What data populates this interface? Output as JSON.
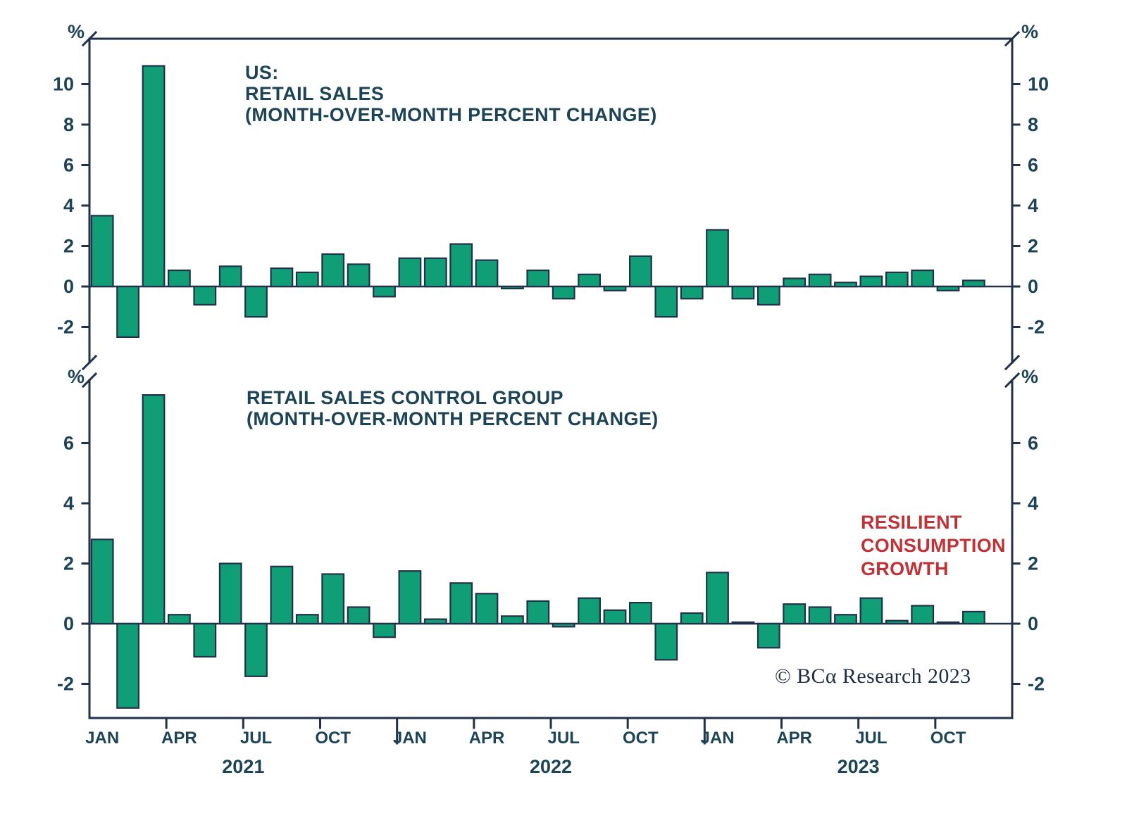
{
  "colors": {
    "bar_fill": "#0f9e75",
    "axis": "#22314a",
    "text": "#1c4356",
    "annotation_red": "#c13237",
    "background": "#ffffff"
  },
  "chart_data": [
    {
      "type": "bar",
      "title_lines": [
        "US:",
        "RETAIL SALES",
        "(MONTH-OVER-MONTH PERCENT CHANGE)"
      ],
      "unit_label": "%",
      "yticks": [
        -2,
        0,
        2,
        4,
        6,
        8,
        10
      ],
      "ylim": [
        -4.0,
        12.3
      ],
      "grid": false,
      "x": [
        "2021-01",
        "2021-02",
        "2021-03",
        "2021-04",
        "2021-05",
        "2021-06",
        "2021-07",
        "2021-08",
        "2021-09",
        "2021-10",
        "2021-11",
        "2021-12",
        "2022-01",
        "2022-02",
        "2022-03",
        "2022-04",
        "2022-05",
        "2022-06",
        "2022-07",
        "2022-08",
        "2022-09",
        "2022-10",
        "2022-11",
        "2022-12",
        "2023-01",
        "2023-02",
        "2023-03",
        "2023-04",
        "2023-05",
        "2023-06",
        "2023-07",
        "2023-08",
        "2023-09",
        "2023-10",
        "2023-11"
      ],
      "values": [
        3.5,
        -2.5,
        10.9,
        0.8,
        -0.9,
        1.0,
        -1.5,
        0.9,
        0.7,
        1.6,
        1.1,
        -0.5,
        1.4,
        1.4,
        2.1,
        1.3,
        -0.1,
        0.8,
        -0.6,
        0.6,
        -0.2,
        1.5,
        -1.5,
        -0.6,
        2.8,
        -0.6,
        -0.9,
        0.4,
        0.6,
        0.2,
        0.5,
        0.7,
        0.8,
        -0.2,
        0.3
      ]
    },
    {
      "type": "bar",
      "title_lines": [
        "RETAIL SALES CONTROL GROUP",
        "(MONTH-OVER-MONTH PERCENT CHANGE)"
      ],
      "unit_label": "%",
      "yticks": [
        -2,
        0,
        2,
        4,
        6
      ],
      "ylim": [
        -3.2,
        8.1
      ],
      "grid": false,
      "x": [
        "2021-01",
        "2021-02",
        "2021-03",
        "2021-04",
        "2021-05",
        "2021-06",
        "2021-07",
        "2021-08",
        "2021-09",
        "2021-10",
        "2021-11",
        "2021-12",
        "2022-01",
        "2022-02",
        "2022-03",
        "2022-04",
        "2022-05",
        "2022-06",
        "2022-07",
        "2022-08",
        "2022-09",
        "2022-10",
        "2022-11",
        "2022-12",
        "2023-01",
        "2023-02",
        "2023-03",
        "2023-04",
        "2023-05",
        "2023-06",
        "2023-07",
        "2023-08",
        "2023-09",
        "2023-10",
        "2023-11"
      ],
      "values": [
        2.8,
        -2.8,
        7.6,
        0.3,
        -1.1,
        2.0,
        -1.75,
        1.9,
        0.3,
        1.65,
        0.55,
        -0.45,
        1.75,
        0.15,
        1.35,
        1.0,
        0.25,
        0.75,
        -0.1,
        0.85,
        0.45,
        0.7,
        -1.2,
        0.35,
        1.7,
        0.05,
        -0.8,
        0.65,
        0.55,
        0.3,
        0.85,
        0.1,
        0.6,
        0.05,
        0.4
      ]
    }
  ],
  "x_axis": {
    "month_tick_labels": [
      {
        "label": "JAN",
        "slot": 0
      },
      {
        "label": "APR",
        "slot": 3
      },
      {
        "label": "JUL",
        "slot": 6
      },
      {
        "label": "OCT",
        "slot": 9
      },
      {
        "label": "JAN",
        "slot": 12
      },
      {
        "label": "APR",
        "slot": 15
      },
      {
        "label": "JUL",
        "slot": 18
      },
      {
        "label": "OCT",
        "slot": 21
      },
      {
        "label": "JAN",
        "slot": 24
      },
      {
        "label": "APR",
        "slot": 27
      },
      {
        "label": "JUL",
        "slot": 30
      },
      {
        "label": "OCT",
        "slot": 33
      }
    ],
    "year_labels": [
      {
        "label": "2021",
        "slot_center": 6
      },
      {
        "label": "2022",
        "slot_center": 18
      },
      {
        "label": "2023",
        "slot_center": 30
      }
    ]
  },
  "annotation": {
    "lines": [
      "RESILIENT",
      "CONSUMPTION",
      "GROWTH"
    ],
    "color": "#c13237"
  },
  "copyright": "© BCα Research 2023"
}
